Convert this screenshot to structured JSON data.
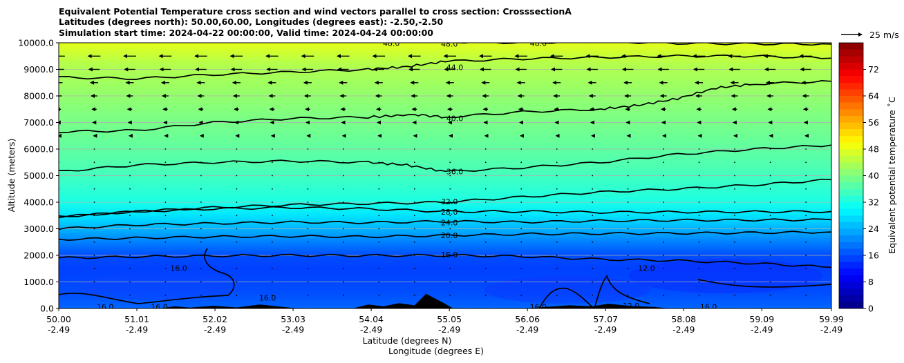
{
  "chart_data": {
    "type": "contourf",
    "title_lines": [
      "Equivalent Potential Temperature cross section and wind vectors parallel to cross section: CrosssectionA",
      "Latitudes (degrees north): 50.00,60.00, Longitudes (degrees east): -2.50,-2.50",
      "Simulation start time: 2024-04-22 00:00:00, Valid time: 2024-04-24 00:00:00"
    ],
    "xlabel_line1": "Latitude (degrees N)",
    "xlabel_line2": "Longitude (degrees E)",
    "ylabel": "Altitude (meters)",
    "x_ticks": [
      {
        "lat": 50.0,
        "lat_label": "50.00",
        "lon_label": "-2.49"
      },
      {
        "lat": 51.01,
        "lat_label": "51.01",
        "lon_label": "-2.49"
      },
      {
        "lat": 52.02,
        "lat_label": "52.02",
        "lon_label": "-2.49"
      },
      {
        "lat": 53.03,
        "lat_label": "53.03",
        "lon_label": "-2.49"
      },
      {
        "lat": 54.04,
        "lat_label": "54.04",
        "lon_label": "-2.49"
      },
      {
        "lat": 55.05,
        "lat_label": "55.05",
        "lon_label": "-2.49"
      },
      {
        "lat": 56.06,
        "lat_label": "56.06",
        "lon_label": "-2.49"
      },
      {
        "lat": 57.07,
        "lat_label": "57.07",
        "lon_label": "-2.49"
      },
      {
        "lat": 58.08,
        "lat_label": "58.08",
        "lon_label": "-2.49"
      },
      {
        "lat": 59.09,
        "lat_label": "59.09",
        "lon_label": "-2.49"
      },
      {
        "lat": 59.99,
        "lat_label": "59.99",
        "lon_label": "-2.49"
      }
    ],
    "y_ticks": [
      {
        "value": 0,
        "label": "0.0"
      },
      {
        "value": 1000,
        "label": "1000.0"
      },
      {
        "value": 2000,
        "label": "2000.0"
      },
      {
        "value": 3000,
        "label": "3000.0"
      },
      {
        "value": 4000,
        "label": "4000.0"
      },
      {
        "value": 5000,
        "label": "5000.0"
      },
      {
        "value": 6000,
        "label": "6000.0"
      },
      {
        "value": 7000,
        "label": "7000.0"
      },
      {
        "value": 8000,
        "label": "8000.0"
      },
      {
        "value": 9000,
        "label": "9000.0"
      },
      {
        "value": 10000,
        "label": "10000.0"
      }
    ],
    "xlim": [
      50.0,
      59.99
    ],
    "ylim": [
      0,
      10000
    ],
    "grid": "horizontal",
    "colorbar": {
      "label": "Equivalent potential temperature ˚C",
      "range": [
        0,
        80
      ],
      "ticks": [
        {
          "value": 0,
          "label": "0"
        },
        {
          "value": 8,
          "label": "8"
        },
        {
          "value": 16,
          "label": "16"
        },
        {
          "value": 24,
          "label": "24"
        },
        {
          "value": 32,
          "label": "32"
        },
        {
          "value": 40,
          "label": "40"
        },
        {
          "value": 48,
          "label": "48"
        },
        {
          "value": 56,
          "label": "56"
        },
        {
          "value": 64,
          "label": "64"
        },
        {
          "value": 72,
          "label": "72"
        }
      ]
    },
    "quiver_key": {
      "label": "25 m/s",
      "speed": 25
    },
    "field_profile": [
      {
        "alt": 0,
        "theta": 18
      },
      {
        "alt": 600,
        "theta": 16
      },
      {
        "alt": 1500,
        "theta": 15
      },
      {
        "alt": 2000,
        "theta": 16
      },
      {
        "alt": 2500,
        "theta": 20
      },
      {
        "alt": 3000,
        "theta": 24
      },
      {
        "alt": 3500,
        "theta": 28
      },
      {
        "alt": 4000,
        "theta": 32
      },
      {
        "alt": 5300,
        "theta": 36
      },
      {
        "alt": 7300,
        "theta": 40
      },
      {
        "alt": 9200,
        "theta": 44
      },
      {
        "alt": 10000,
        "theta": 48
      }
    ],
    "contours": [
      {
        "level": 16,
        "label": "16.0",
        "points": [
          [
            50.0,
            1900
          ],
          [
            51.0,
            1950
          ],
          [
            52.0,
            1980
          ],
          [
            53.0,
            2000
          ],
          [
            54.0,
            1990
          ],
          [
            55.0,
            2000
          ],
          [
            56.0,
            1960
          ],
          [
            57.0,
            1850
          ],
          [
            58.0,
            1800
          ],
          [
            59.0,
            1700
          ],
          [
            59.99,
            1550
          ]
        ]
      },
      {
        "level": 20,
        "label": "20.0",
        "points": [
          [
            50.0,
            2600
          ],
          [
            51.0,
            2650
          ],
          [
            52.0,
            2700
          ],
          [
            53.0,
            2720
          ],
          [
            54.0,
            2700
          ],
          [
            55.0,
            2750
          ],
          [
            56.0,
            2800
          ],
          [
            57.0,
            2820
          ],
          [
            58.0,
            2830
          ],
          [
            59.0,
            2850
          ],
          [
            59.99,
            2880
          ]
        ]
      },
      {
        "level": 24,
        "label": "24.0",
        "points": [
          [
            50.0,
            3000
          ],
          [
            51.0,
            3150
          ],
          [
            52.0,
            3200
          ],
          [
            53.0,
            3250
          ],
          [
            54.0,
            3230
          ],
          [
            55.0,
            3280
          ],
          [
            56.0,
            3250
          ],
          [
            57.0,
            3300
          ],
          [
            58.0,
            3320
          ],
          [
            59.0,
            3330
          ],
          [
            59.99,
            3340
          ]
        ]
      },
      {
        "level": 28,
        "label": "28.0",
        "points": [
          [
            50.0,
            3450
          ],
          [
            51.0,
            3650
          ],
          [
            52.0,
            3750
          ],
          [
            53.0,
            3800
          ],
          [
            54.0,
            3750
          ],
          [
            55.0,
            3650
          ],
          [
            56.0,
            3650
          ],
          [
            57.0,
            3620
          ],
          [
            58.0,
            3630
          ],
          [
            59.0,
            3640
          ],
          [
            59.99,
            3650
          ]
        ]
      },
      {
        "level": 32,
        "label": "32.0",
        "points": [
          [
            50.0,
            3450
          ],
          [
            51.0,
            3650
          ],
          [
            52.0,
            3800
          ],
          [
            53.0,
            3900
          ],
          [
            54.0,
            3950
          ],
          [
            55.0,
            4000
          ],
          [
            56.0,
            4200
          ],
          [
            57.0,
            4380
          ],
          [
            58.0,
            4500
          ],
          [
            59.0,
            4650
          ],
          [
            59.99,
            4850
          ]
        ]
      },
      {
        "level": 36,
        "label": "36.0",
        "points": [
          [
            50.0,
            5150
          ],
          [
            51.0,
            5400
          ],
          [
            52.0,
            5500
          ],
          [
            53.0,
            5550
          ],
          [
            54.0,
            5500
          ],
          [
            54.5,
            5400
          ],
          [
            55.0,
            5150
          ],
          [
            56.0,
            5300
          ],
          [
            57.0,
            5500
          ],
          [
            58.0,
            5800
          ],
          [
            59.0,
            6000
          ],
          [
            59.99,
            6150
          ]
        ]
      },
      {
        "level": 40,
        "label": "40.0",
        "points": [
          [
            50.0,
            6650
          ],
          [
            51.0,
            6700
          ],
          [
            52.0,
            7000
          ],
          [
            53.0,
            7150
          ],
          [
            54.0,
            7200
          ],
          [
            54.6,
            7300
          ],
          [
            55.0,
            7200
          ],
          [
            56.0,
            7400
          ],
          [
            57.0,
            7500
          ],
          [
            57.5,
            7650
          ],
          [
            58.0,
            7900
          ],
          [
            58.5,
            8300
          ],
          [
            59.0,
            8450
          ],
          [
            59.99,
            8550
          ]
        ]
      },
      {
        "level": 44,
        "label": "44.0",
        "points": [
          [
            50.0,
            8700
          ],
          [
            51.0,
            8650
          ],
          [
            52.0,
            8800
          ],
          [
            53.0,
            8900
          ],
          [
            54.0,
            9000
          ],
          [
            54.5,
            9100
          ],
          [
            55.0,
            9300
          ],
          [
            56.0,
            9400
          ],
          [
            57.0,
            9450
          ],
          [
            58.0,
            9500
          ],
          [
            59.0,
            9500
          ],
          [
            59.99,
            9420
          ]
        ]
      },
      {
        "level": 48,
        "label": "48.0",
        "points": [
          [
            50.0,
            10100
          ],
          [
            53.0,
            10080
          ],
          [
            55.0,
            10040
          ],
          [
            56.0,
            10000
          ],
          [
            57.0,
            10050
          ],
          [
            58.0,
            9980
          ],
          [
            59.0,
            9960
          ],
          [
            59.99,
            9950
          ]
        ]
      }
    ],
    "contour_labels": [
      {
        "text": "44.0",
        "lat": 55.12,
        "alt": 9080
      },
      {
        "text": "40.0",
        "lat": 55.12,
        "alt": 7150
      },
      {
        "text": "36.0",
        "lat": 55.12,
        "alt": 5150
      },
      {
        "text": "32.0",
        "lat": 55.05,
        "alt": 4020
      },
      {
        "text": "28.0",
        "lat": 55.05,
        "alt": 3630
      },
      {
        "text": "24.0",
        "lat": 55.05,
        "alt": 3230
      },
      {
        "text": "20.0",
        "lat": 55.05,
        "alt": 2750
      },
      {
        "text": "16.0",
        "lat": 55.05,
        "alt": 2030
      },
      {
        "text": "48.0",
        "lat": 55.05,
        "alt": 9960
      },
      {
        "text": "48.0",
        "lat": 54.3,
        "alt": 9990
      },
      {
        "text": "48.0",
        "lat": 56.2,
        "alt": 9990
      },
      {
        "text": "16.0",
        "lat": 51.55,
        "alt": 1520
      },
      {
        "text": "16.0",
        "lat": 50.6,
        "alt": 60
      },
      {
        "text": "16.0",
        "lat": 51.3,
        "alt": 60
      },
      {
        "text": "16.0",
        "lat": 52.7,
        "alt": 400
      },
      {
        "text": "12.0",
        "lat": 57.6,
        "alt": 1520
      },
      {
        "text": "12.0",
        "lat": 57.4,
        "alt": 100
      },
      {
        "text": "16.0",
        "lat": 56.2,
        "alt": 60
      },
      {
        "text": "16.0",
        "lat": 58.4,
        "alt": 60
      }
    ],
    "terrain": [
      {
        "lat": 50.0,
        "alt": 0
      },
      {
        "lat": 51.3,
        "alt": 0
      },
      {
        "lat": 51.5,
        "alt": 80
      },
      {
        "lat": 51.7,
        "alt": 30
      },
      {
        "lat": 52.0,
        "alt": 100
      },
      {
        "lat": 52.3,
        "alt": 40
      },
      {
        "lat": 52.6,
        "alt": 150
      },
      {
        "lat": 52.9,
        "alt": 60
      },
      {
        "lat": 53.1,
        "alt": 0
      },
      {
        "lat": 53.8,
        "alt": 0
      },
      {
        "lat": 54.0,
        "alt": 150
      },
      {
        "lat": 54.2,
        "alt": 80
      },
      {
        "lat": 54.4,
        "alt": 200
      },
      {
        "lat": 54.6,
        "alt": 120
      },
      {
        "lat": 54.75,
        "alt": 550
      },
      {
        "lat": 54.95,
        "alt": 250
      },
      {
        "lat": 55.1,
        "alt": 0
      },
      {
        "lat": 56.0,
        "alt": 0
      },
      {
        "lat": 56.3,
        "alt": 60
      },
      {
        "lat": 56.6,
        "alt": 120
      },
      {
        "lat": 56.9,
        "alt": 80
      },
      {
        "lat": 57.1,
        "alt": 180
      },
      {
        "lat": 57.4,
        "alt": 90
      },
      {
        "lat": 57.7,
        "alt": 60
      },
      {
        "lat": 57.9,
        "alt": 0
      },
      {
        "lat": 59.99,
        "alt": 0
      }
    ],
    "wind_rows": [
      {
        "alt": 9500,
        "u": -8
      },
      {
        "alt": 9000,
        "u": -7
      },
      {
        "alt": 8500,
        "u": -5
      },
      {
        "alt": 8000,
        "u": -4
      },
      {
        "alt": 7500,
        "u": -3
      },
      {
        "alt": 7000,
        "u": -2
      },
      {
        "alt": 6500,
        "u": -1
      },
      {
        "alt": 6000,
        "u": -0.5
      },
      {
        "alt": 5500,
        "u": -0.3
      },
      {
        "alt": 5000,
        "u": 0
      },
      {
        "alt": 4500,
        "u": 0
      },
      {
        "alt": 4000,
        "u": 0
      },
      {
        "alt": 3500,
        "u": 0
      },
      {
        "alt": 3000,
        "u": 0
      },
      {
        "alt": 2500,
        "u": 0
      },
      {
        "alt": 2000,
        "u": 0
      },
      {
        "alt": 1500,
        "u": 0
      },
      {
        "alt": 1000,
        "u": 0
      },
      {
        "alt": 500,
        "u": 0
      }
    ],
    "wind_columns": [
      50.0,
      50.46,
      50.92,
      51.38,
      51.84,
      52.3,
      52.76,
      53.22,
      53.68,
      54.14,
      54.6,
      55.06,
      55.52,
      55.98,
      56.44,
      56.9,
      57.36,
      57.82,
      58.28,
      58.74,
      59.2,
      59.66
    ]
  }
}
